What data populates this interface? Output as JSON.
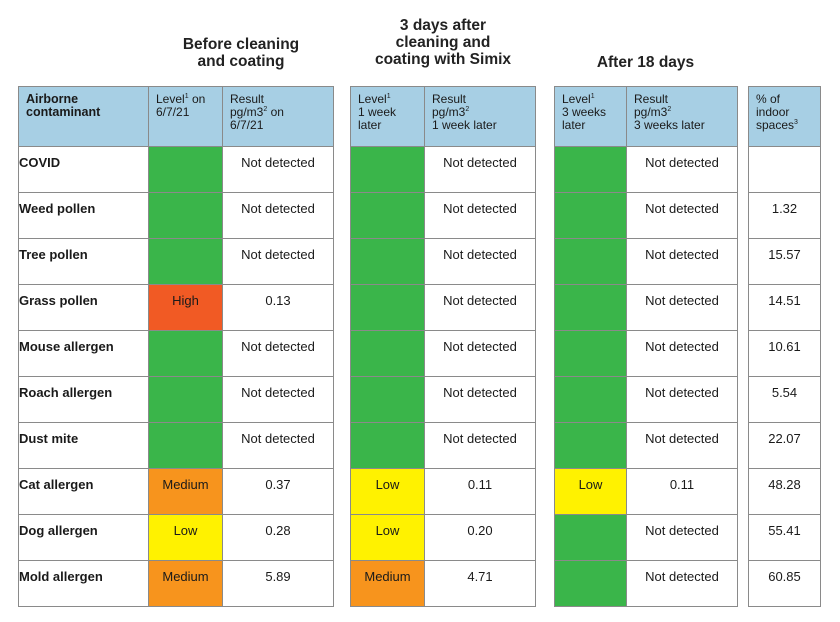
{
  "colors": {
    "header_bg": "#a7cfe4",
    "green": "#3ab54a",
    "high": "#f15a24",
    "medium": "#f7941d",
    "low": "#fff200"
  },
  "titles": {
    "before": [
      "Before cleaning",
      "and coating"
    ],
    "three_days": [
      "3 days after",
      "cleaning and",
      "coating with Simix"
    ],
    "after18": [
      "After 18 days"
    ]
  },
  "headers": {
    "contaminant": [
      "Airborne",
      "contaminant"
    ],
    "level_before": [
      "Level",
      "on",
      "6/7/21"
    ],
    "result_before": [
      "Result",
      "pg/m3",
      "on",
      "6/7/21"
    ],
    "level_week": [
      "Level",
      "1 week",
      "later"
    ],
    "result_week": [
      "Result",
      "pg/m3",
      "1 week later"
    ],
    "level_3weeks": [
      "Level",
      "3 weeks",
      "later"
    ],
    "result_3weeks": [
      "Result",
      "pg/m3",
      "3 weeks later"
    ],
    "pct": [
      "% of",
      "indoor",
      "spaces"
    ],
    "sup1": "1",
    "sup2": "2",
    "sup3": "3"
  },
  "rows": [
    {
      "name": "COVID",
      "b_level": "",
      "b_color": "green",
      "b_result": "Not detected",
      "w_level": "",
      "w_color": "green",
      "w_result": "Not detected",
      "t_level": "",
      "t_color": "green",
      "t_result": "Not detected",
      "pct": ""
    },
    {
      "name": "Weed pollen",
      "b_level": "",
      "b_color": "green",
      "b_result": "Not detected",
      "w_level": "",
      "w_color": "green",
      "w_result": "Not detected",
      "t_level": "",
      "t_color": "green",
      "t_result": "Not detected",
      "pct": "1.32"
    },
    {
      "name": "Tree pollen",
      "b_level": "",
      "b_color": "green",
      "b_result": "Not detected",
      "w_level": "",
      "w_color": "green",
      "w_result": "Not detected",
      "t_level": "",
      "t_color": "green",
      "t_result": "Not detected",
      "pct": "15.57"
    },
    {
      "name": "Grass pollen",
      "b_level": "High",
      "b_color": "red",
      "b_result": "0.13",
      "w_level": "",
      "w_color": "green",
      "w_result": "Not detected",
      "t_level": "",
      "t_color": "green",
      "t_result": "Not detected",
      "pct": "14.51"
    },
    {
      "name": "Mouse allergen",
      "b_level": "",
      "b_color": "green",
      "b_result": "Not detected",
      "w_level": "",
      "w_color": "green",
      "w_result": "Not detected",
      "t_level": "",
      "t_color": "green",
      "t_result": "Not detected",
      "pct": "10.61"
    },
    {
      "name": "Roach allergen",
      "b_level": "",
      "b_color": "green",
      "b_result": "Not detected",
      "w_level": "",
      "w_color": "green",
      "w_result": "Not detected",
      "t_level": "",
      "t_color": "green",
      "t_result": "Not detected",
      "pct": "5.54"
    },
    {
      "name": "Dust mite",
      "b_level": "",
      "b_color": "green",
      "b_result": "Not detected",
      "w_level": "",
      "w_color": "green",
      "w_result": "Not detected",
      "t_level": "",
      "t_color": "green",
      "t_result": "Not detected",
      "pct": "22.07"
    },
    {
      "name": "Cat allergen",
      "b_level": "Medium",
      "b_color": "orange",
      "b_result": "0.37",
      "w_level": "Low",
      "w_color": "yellow",
      "w_result": "0.11",
      "t_level": "Low",
      "t_color": "yellow",
      "t_result": "0.11",
      "pct": "48.28"
    },
    {
      "name": "Dog allergen",
      "b_level": "Low",
      "b_color": "yellow",
      "b_result": "0.28",
      "w_level": "Low",
      "w_color": "yellow",
      "w_result": "0.20",
      "t_level": "",
      "t_color": "green",
      "t_result": "Not detected",
      "pct": "55.41"
    },
    {
      "name": "Mold allergen",
      "b_level": "Medium",
      "b_color": "orange",
      "b_result": "5.89",
      "w_level": "Medium",
      "w_color": "orange",
      "w_result": "4.71",
      "t_level": "",
      "t_color": "green",
      "t_result": "Not detected",
      "pct": "60.85"
    }
  ]
}
